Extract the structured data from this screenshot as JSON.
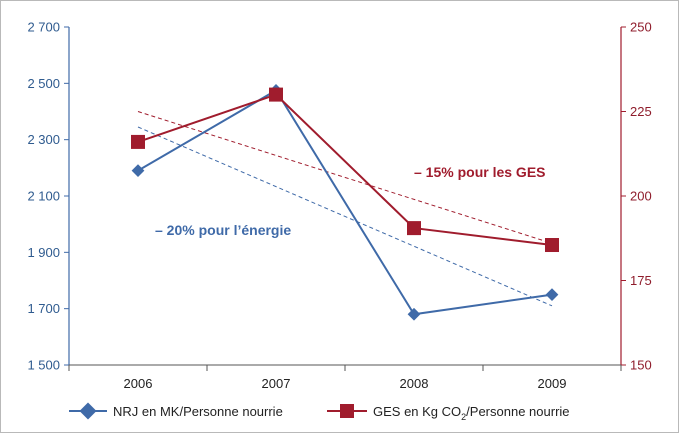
{
  "chart_data": {
    "type": "line",
    "categories": [
      "2006",
      "2007",
      "2008",
      "2009"
    ],
    "y_left": {
      "ticks": [
        "1 500",
        "1 700",
        "1 900",
        "2 100",
        "2 300",
        "2 500",
        "2 700"
      ],
      "tick_values": [
        1500,
        1700,
        1900,
        2100,
        2300,
        2500,
        2700
      ],
      "ylim": [
        1500,
        2700
      ]
    },
    "y_right": {
      "ticks": [
        "150",
        "175",
        "200",
        "225",
        "250"
      ],
      "tick_values": [
        150,
        175,
        200,
        225,
        250
      ],
      "ylim": [
        150,
        250
      ]
    },
    "series": [
      {
        "name": "NRJ en MK/Personne nourrie",
        "axis": "left",
        "values": [
          2190,
          2475,
          1680,
          1750
        ],
        "color": "#3f6aa8",
        "marker": "diamond"
      },
      {
        "name": "GES en Kg CO₂/Personne nourrie",
        "axis": "right",
        "values": [
          216,
          230,
          190.5,
          185.5
        ],
        "color": "#a01c2d",
        "marker": "square"
      }
    ],
    "trendlines": [
      {
        "series": "NRJ en MK/Personne nourrie",
        "axis": "left",
        "from": 2345,
        "to": 1710,
        "color": "#3f6aa8"
      },
      {
        "series": "GES en Kg CO₂/Personne nourrie",
        "axis": "right",
        "from": 225,
        "to": 186,
        "color": "#a01c2d"
      }
    ],
    "annotations": [
      {
        "text": "– 20% pour l’énergie",
        "color": "#3f6aa8"
      },
      {
        "text": "– 15% pour les GES",
        "color": "#a01c2d"
      }
    ],
    "grid": false,
    "legend_position": "bottom"
  },
  "legend": {
    "nrj_label": "NRJ en MK/Personne nourrie",
    "ges_label_prefix": "GES en Kg CO",
    "ges_label_sub": "2",
    "ges_label_suffix": "/Personne nourrie"
  }
}
